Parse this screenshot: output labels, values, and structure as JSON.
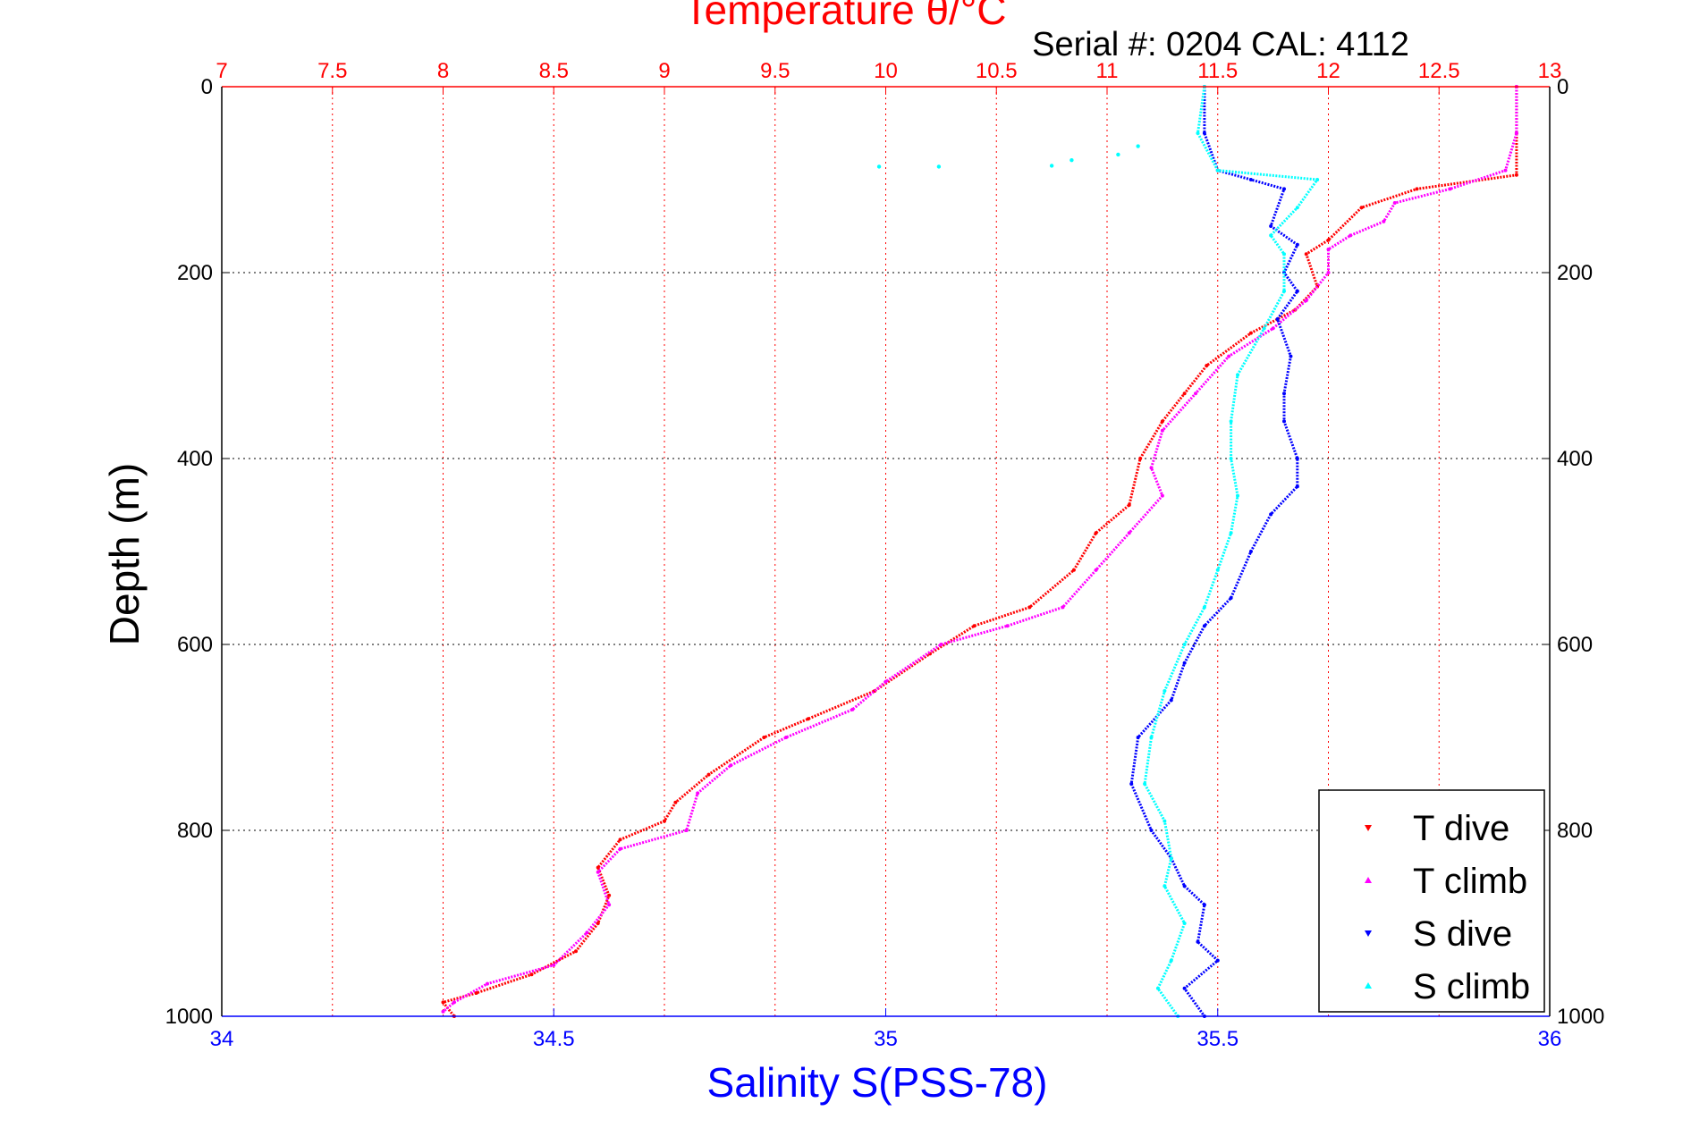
{
  "chart_data": {
    "type": "scatter",
    "title": "Temperature θ/°C",
    "subtitle": "Serial #: 0204  CAL: 4112",
    "xlabel": "Salinity S(PSS-78)",
    "ylabel": "Depth (m)",
    "x_top": {
      "label": "Temperature θ/°C",
      "lim": [
        7,
        13
      ],
      "ticks": [
        "7",
        "7.5",
        "8",
        "8.5",
        "9",
        "9.5",
        "10",
        "10.5",
        "11",
        "11.5",
        "12",
        "12.5",
        "13"
      ],
      "color": "#ff0000"
    },
    "x_bottom": {
      "label": "Salinity S(PSS-78)",
      "lim": [
        34,
        36
      ],
      "ticks": [
        "34",
        "34.5",
        "35",
        "35.5",
        "36"
      ],
      "color": "#0000ff"
    },
    "y": {
      "lim": [
        0,
        1000
      ],
      "reversed": true,
      "ticks": [
        "0",
        "200",
        "400",
        "600",
        "800",
        "1000"
      ]
    },
    "grid": true,
    "legend_position": "bottom-right",
    "series": [
      {
        "name": "T dive",
        "axis": "temperature",
        "color": "#ff0000",
        "marker": "triangle-down",
        "points": [
          [
            12.85,
            0
          ],
          [
            12.85,
            50
          ],
          [
            12.85,
            95
          ],
          [
            12.4,
            110
          ],
          [
            12.15,
            130
          ],
          [
            12.0,
            165
          ],
          [
            11.9,
            180
          ],
          [
            11.95,
            215
          ],
          [
            11.85,
            240
          ],
          [
            11.65,
            265
          ],
          [
            11.45,
            300
          ],
          [
            11.35,
            330
          ],
          [
            11.25,
            360
          ],
          [
            11.15,
            400
          ],
          [
            11.1,
            450
          ],
          [
            10.95,
            480
          ],
          [
            10.85,
            520
          ],
          [
            10.65,
            560
          ],
          [
            10.4,
            580
          ],
          [
            10.2,
            610
          ],
          [
            9.95,
            650
          ],
          [
            9.65,
            680
          ],
          [
            9.45,
            700
          ],
          [
            9.2,
            740
          ],
          [
            9.05,
            770
          ],
          [
            9.0,
            790
          ],
          [
            8.8,
            810
          ],
          [
            8.7,
            840
          ],
          [
            8.75,
            870
          ],
          [
            8.7,
            900
          ],
          [
            8.6,
            930
          ],
          [
            8.4,
            955
          ],
          [
            8.15,
            975
          ],
          [
            8.0,
            985
          ],
          [
            8.05,
            1000
          ]
        ]
      },
      {
        "name": "T climb",
        "axis": "temperature",
        "color": "#ff00ff",
        "marker": "triangle-up",
        "points": [
          [
            12.85,
            0
          ],
          [
            12.85,
            50
          ],
          [
            12.8,
            90
          ],
          [
            12.55,
            110
          ],
          [
            12.3,
            125
          ],
          [
            12.25,
            145
          ],
          [
            12.1,
            160
          ],
          [
            12.0,
            175
          ],
          [
            12.0,
            200
          ],
          [
            11.9,
            230
          ],
          [
            11.75,
            260
          ],
          [
            11.55,
            290
          ],
          [
            11.4,
            330
          ],
          [
            11.25,
            370
          ],
          [
            11.2,
            410
          ],
          [
            11.25,
            440
          ],
          [
            11.1,
            480
          ],
          [
            10.95,
            520
          ],
          [
            10.8,
            560
          ],
          [
            10.55,
            580
          ],
          [
            10.25,
            600
          ],
          [
            10.0,
            640
          ],
          [
            9.85,
            670
          ],
          [
            9.55,
            700
          ],
          [
            9.3,
            730
          ],
          [
            9.15,
            760
          ],
          [
            9.1,
            800
          ],
          [
            8.8,
            820
          ],
          [
            8.7,
            845
          ],
          [
            8.75,
            880
          ],
          [
            8.65,
            910
          ],
          [
            8.5,
            945
          ],
          [
            8.2,
            965
          ],
          [
            8.05,
            985
          ],
          [
            8.0,
            995
          ]
        ]
      },
      {
        "name": "S dive",
        "axis": "salinity",
        "color": "#0000ff",
        "marker": "triangle-down",
        "points": [
          [
            35.48,
            0
          ],
          [
            35.48,
            50
          ],
          [
            35.5,
            90
          ],
          [
            35.55,
            100
          ],
          [
            35.6,
            110
          ],
          [
            35.58,
            150
          ],
          [
            35.62,
            170
          ],
          [
            35.6,
            200
          ],
          [
            35.62,
            220
          ],
          [
            35.59,
            250
          ],
          [
            35.61,
            290
          ],
          [
            35.6,
            330
          ],
          [
            35.6,
            360
          ],
          [
            35.62,
            400
          ],
          [
            35.62,
            430
          ],
          [
            35.58,
            460
          ],
          [
            35.55,
            500
          ],
          [
            35.52,
            550
          ],
          [
            35.48,
            580
          ],
          [
            35.45,
            620
          ],
          [
            35.43,
            660
          ],
          [
            35.38,
            700
          ],
          [
            35.37,
            750
          ],
          [
            35.4,
            800
          ],
          [
            35.43,
            830
          ],
          [
            35.45,
            860
          ],
          [
            35.48,
            880
          ],
          [
            35.47,
            920
          ],
          [
            35.5,
            940
          ],
          [
            35.45,
            970
          ],
          [
            35.48,
            1000
          ]
        ]
      },
      {
        "name": "S climb",
        "axis": "salinity",
        "color": "#00ffff",
        "marker": "triangle-up",
        "points": [
          [
            35.48,
            0
          ],
          [
            35.47,
            50
          ],
          [
            35.5,
            90
          ],
          [
            35.65,
            100
          ],
          [
            35.62,
            130
          ],
          [
            35.58,
            160
          ],
          [
            35.6,
            180
          ],
          [
            35.6,
            220
          ],
          [
            35.57,
            260
          ],
          [
            35.53,
            310
          ],
          [
            35.52,
            360
          ],
          [
            35.52,
            400
          ],
          [
            35.53,
            440
          ],
          [
            35.52,
            480
          ],
          [
            35.5,
            520
          ],
          [
            35.48,
            560
          ],
          [
            35.45,
            600
          ],
          [
            35.42,
            650
          ],
          [
            35.4,
            700
          ],
          [
            35.39,
            750
          ],
          [
            35.42,
            790
          ],
          [
            35.43,
            830
          ],
          [
            35.42,
            860
          ],
          [
            35.45,
            900
          ],
          [
            35.43,
            940
          ],
          [
            35.41,
            970
          ],
          [
            35.44,
            1000
          ]
        ]
      },
      {
        "name": "",
        "axis": "salinity",
        "color": "#00ffff",
        "marker": "triangle-up",
        "points": [
          [
            34.99,
            86
          ],
          [
            35.08,
            86
          ],
          [
            35.25,
            85
          ],
          [
            35.28,
            79
          ],
          [
            35.35,
            73
          ],
          [
            35.38,
            64
          ]
        ]
      }
    ]
  },
  "colors": {
    "axis": "#000000",
    "grid_top": "#ff0000",
    "grid_y": "#000000"
  }
}
